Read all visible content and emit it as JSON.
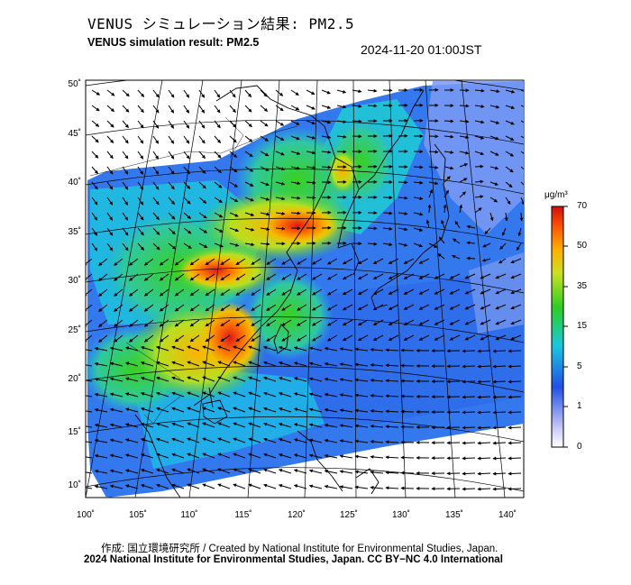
{
  "header": {
    "title_jp": "VENUS シミュレーション結果: PM2.5",
    "title_en": "VENUS simulation result: PM2.5",
    "timestamp": "2024-11-20 01:00JST"
  },
  "map": {
    "lon_labels": [
      "100˚",
      "105˚",
      "110˚",
      "115˚",
      "120˚",
      "125˚",
      "130˚",
      "135˚",
      "140˚"
    ],
    "lat_labels": [
      "50˚",
      "45˚",
      "40˚",
      "35˚",
      "30˚",
      "25˚",
      "20˚",
      "15˚",
      "10˚"
    ],
    "lon_values": [
      100,
      105,
      110,
      115,
      120,
      125,
      130,
      135,
      140
    ],
    "lat_values": [
      50,
      45,
      40,
      35,
      30,
      25,
      20,
      15,
      10
    ],
    "variable": "PM2.5",
    "overlay": "wind-vectors"
  },
  "colorbar": {
    "unit": "μg/m³",
    "labels": [
      "70",
      "50",
      "35",
      "15",
      "5",
      "1",
      "0"
    ],
    "colors": [
      "#d01010",
      "#ff6a00",
      "#ffb000",
      "#2ccf20",
      "#18c8e0",
      "#2060e8",
      "#ffffff"
    ]
  },
  "footer": {
    "credit_line": "作成: 国立環境研究所 / Created by National Institute for Environmental Studies, Japan.",
    "license_line": "2024 National Institute for Environmental Studies, Japan. CC BY−NC 4.0 International"
  }
}
